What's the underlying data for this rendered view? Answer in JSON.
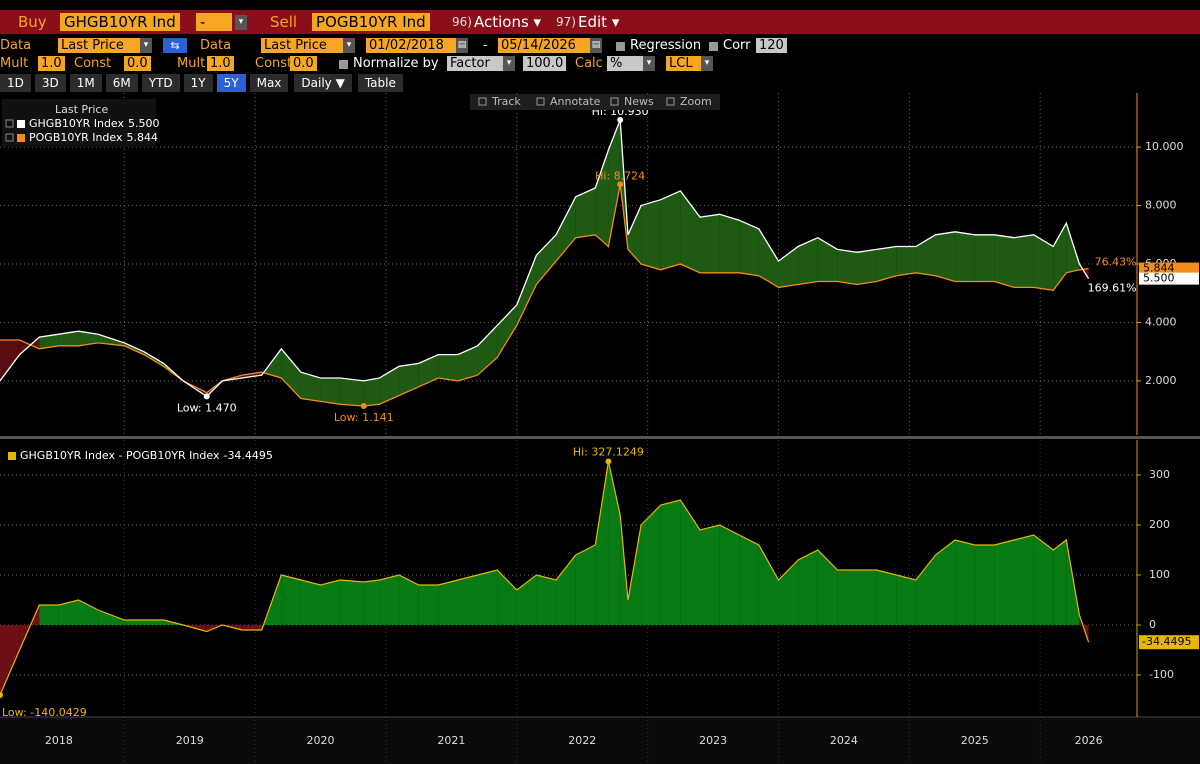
{
  "toolbar": {
    "buy_label": "Buy",
    "buy_ticker": "GHGB10YR Ind",
    "operator": "-",
    "sell_label": "Sell",
    "sell_ticker": "POGB10YR Ind",
    "actions_num": "96)",
    "actions": "Actions ▾",
    "edit_num": "97)",
    "edit": "Edit ▾"
  },
  "settings": {
    "data1_label": "Data",
    "data1": "Last Price",
    "data2_label": "Data",
    "data2": "Last Price",
    "start": "01/02/2018",
    "dash": "-",
    "end": "05/14/2026",
    "regression": "Regression",
    "corr": "Corr",
    "corr_n": "120",
    "mult1_label": "Mult",
    "mult1": "1.0",
    "const1_label": "Const",
    "const1": "0.0",
    "mult2_label": "Mult",
    "mult2": "1.0",
    "const2_label": "Const",
    "const2": "0.0",
    "normalize": "Normalize by",
    "factor": "Factor",
    "factor_value": "100.0",
    "calc_label": "Calc",
    "calc": "%",
    "lcl": "LCL"
  },
  "periods": [
    "1D",
    "3D",
    "1M",
    "6M",
    "YTD",
    "1Y",
    "5Y",
    "Max"
  ],
  "selected_period": "5Y",
  "frequency": "Daily ▼",
  "table": "Table",
  "chart_tools": [
    "Track",
    "Annotate",
    "News",
    "Zoom"
  ],
  "chart_data": [
    {
      "type": "line",
      "legend_title": "Last Price",
      "x": [
        2018.05,
        2018.2,
        2018.35,
        2018.5,
        2018.65,
        2018.8,
        2019.0,
        2019.15,
        2019.3,
        2019.45,
        2019.63,
        2019.75,
        2019.9,
        2020.05,
        2020.2,
        2020.35,
        2020.5,
        2020.65,
        2020.83,
        2020.95,
        2021.1,
        2021.25,
        2021.4,
        2021.55,
        2021.7,
        2021.85,
        2022.0,
        2022.15,
        2022.3,
        2022.45,
        2022.6,
        2022.7,
        2022.79,
        2022.85,
        2022.95,
        2023.1,
        2023.25,
        2023.4,
        2023.55,
        2023.7,
        2023.85,
        2024.0,
        2024.15,
        2024.3,
        2024.45,
        2024.6,
        2024.75,
        2024.9,
        2025.05,
        2025.2,
        2025.35,
        2025.5,
        2025.65,
        2025.8,
        2025.95,
        2026.1,
        2026.2,
        2026.3,
        2026.37
      ],
      "series": [
        {
          "name": "GHGB10YR Index",
          "color": "#ffffff",
          "last": {
            "value": 5.5,
            "label": "5.500"
          },
          "change_label": "169.61%",
          "values": [
            2.0,
            2.9,
            3.5,
            3.6,
            3.7,
            3.6,
            3.3,
            3.0,
            2.6,
            2.0,
            1.47,
            2.0,
            2.1,
            2.2,
            3.1,
            2.3,
            2.1,
            2.1,
            2.0,
            2.1,
            2.5,
            2.6,
            2.9,
            2.9,
            3.2,
            3.9,
            4.6,
            6.3,
            7.0,
            8.3,
            8.6,
            9.9,
            10.93,
            7.0,
            8.0,
            8.2,
            8.5,
            7.6,
            7.7,
            7.5,
            7.2,
            6.1,
            6.6,
            6.9,
            6.5,
            6.4,
            6.5,
            6.6,
            6.6,
            7.0,
            7.1,
            7.0,
            7.0,
            6.9,
            7.0,
            6.6,
            7.4,
            6.0,
            5.5
          ]
        },
        {
          "name": "POGB10YR Index",
          "color": "#f28c1a",
          "last": {
            "value": 5.844,
            "label": "5.844"
          },
          "change_label": "76.43%",
          "values": [
            3.4,
            3.4,
            3.1,
            3.2,
            3.2,
            3.3,
            3.2,
            2.9,
            2.5,
            2.0,
            1.6,
            2.0,
            2.2,
            2.3,
            2.1,
            1.4,
            1.3,
            1.2,
            1.141,
            1.2,
            1.5,
            1.8,
            2.1,
            2.0,
            2.2,
            2.8,
            3.9,
            5.3,
            6.1,
            6.9,
            7.0,
            6.6,
            8.724,
            6.5,
            6.0,
            5.8,
            6.0,
            5.7,
            5.7,
            5.7,
            5.6,
            5.2,
            5.3,
            5.4,
            5.4,
            5.3,
            5.4,
            5.6,
            5.7,
            5.6,
            5.4,
            5.4,
            5.4,
            5.2,
            5.2,
            5.1,
            5.7,
            5.8,
            5.844
          ]
        }
      ],
      "positive_fill": "#1f5a12",
      "negative_fill": "#5a0c10",
      "xlim": [
        2018.05,
        2026.74
      ],
      "x_gridlines": [
        2019,
        2020,
        2021,
        2022,
        2023,
        2024,
        2025,
        2026
      ],
      "ylim": [
        0.15,
        11.85
      ],
      "yticks": [
        {
          "value": 2,
          "label": "2.000"
        },
        {
          "value": 4,
          "label": "4.000"
        },
        {
          "value": 6,
          "label": "6.000"
        },
        {
          "value": 8,
          "label": "8.000"
        },
        {
          "value": 10,
          "label": "10.000"
        }
      ],
      "annotations": [
        {
          "label": "Hi: 10.930",
          "x": 2022.79,
          "value": 10.93,
          "color": "#ffffff",
          "anchor": "above"
        },
        {
          "label": "Hi: 8.724",
          "x": 2022.79,
          "value": 8.724,
          "color": "#f28c1a",
          "anchor": "above"
        },
        {
          "label": "Low: 1.470",
          "x": 2019.63,
          "value": 1.47,
          "color": "#ffffff",
          "anchor": "below"
        },
        {
          "label": "Low: 1.141",
          "x": 2020.83,
          "value": 1.141,
          "color": "#f28c1a",
          "anchor": "below"
        }
      ]
    },
    {
      "type": "area",
      "title": "GHGB10YR Index - POGB10YR Index",
      "last": {
        "value": -34.4495,
        "label": "-34.4495"
      },
      "color": "#e8b800",
      "positive_fill": "#087a14",
      "negative_fill": "#6b0f14",
      "x": [
        2018.05,
        2018.2,
        2018.35,
        2018.5,
        2018.65,
        2018.8,
        2019.0,
        2019.15,
        2019.3,
        2019.45,
        2019.63,
        2019.75,
        2019.9,
        2020.05,
        2020.2,
        2020.35,
        2020.5,
        2020.65,
        2020.83,
        2020.95,
        2021.1,
        2021.25,
        2021.4,
        2021.55,
        2021.7,
        2021.85,
        2022.0,
        2022.15,
        2022.3,
        2022.45,
        2022.6,
        2022.7,
        2022.79,
        2022.85,
        2022.95,
        2023.1,
        2023.25,
        2023.4,
        2023.55,
        2023.7,
        2023.85,
        2024.0,
        2024.15,
        2024.3,
        2024.45,
        2024.6,
        2024.75,
        2024.9,
        2025.05,
        2025.2,
        2025.35,
        2025.5,
        2025.65,
        2025.8,
        2025.95,
        2026.1,
        2026.2,
        2026.3,
        2026.37
      ],
      "values": [
        -140.0429,
        -50,
        40,
        40,
        50,
        30,
        10,
        10,
        10,
        0,
        -13,
        0,
        -10,
        -10,
        100,
        90,
        80,
        90,
        86,
        90,
        100,
        80,
        80,
        90,
        100,
        110,
        70,
        100,
        90,
        140,
        160,
        327.1249,
        220,
        50,
        200,
        240,
        250,
        190,
        200,
        180,
        160,
        90,
        130,
        150,
        110,
        110,
        110,
        100,
        90,
        140,
        170,
        160,
        160,
        170,
        180,
        150,
        170,
        20,
        -34.4495
      ],
      "xlim": [
        2018.05,
        2026.74
      ],
      "x_gridlines": [
        2019,
        2020,
        2021,
        2022,
        2023,
        2024,
        2025,
        2026
      ],
      "xticks": [
        {
          "value": 2018.5,
          "label": "2018"
        },
        {
          "value": 2019.5,
          "label": "2019"
        },
        {
          "value": 2020.5,
          "label": "2020"
        },
        {
          "value": 2021.5,
          "label": "2021"
        },
        {
          "value": 2022.5,
          "label": "2022"
        },
        {
          "value": 2023.5,
          "label": "2023"
        },
        {
          "value": 2024.5,
          "label": "2024"
        },
        {
          "value": 2025.5,
          "label": "2025"
        },
        {
          "value": 2026.37,
          "label": "2026"
        }
      ],
      "ylim": [
        -184,
        370
      ],
      "yticks": [
        -100,
        0,
        100,
        200,
        300
      ],
      "annotations": [
        {
          "label": "Hi: 327.1249",
          "x": 2022.7,
          "value": 327.1249,
          "color": "#e8b800",
          "anchor": "above"
        },
        {
          "label": "Low: -140.0429",
          "x": 2018.05,
          "value": -140.0429,
          "color": "#e8b800",
          "anchor": "below"
        }
      ]
    }
  ]
}
